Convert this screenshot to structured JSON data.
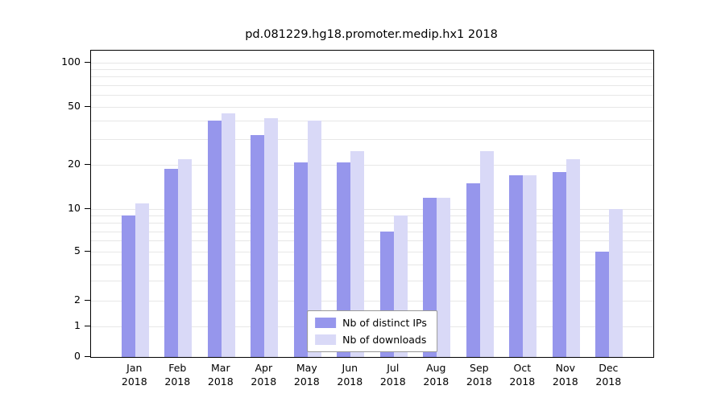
{
  "chart_data": {
    "type": "bar",
    "title": "pd.081229.hg18.promoter.medip.hx1 2018",
    "categories": [
      "Jan",
      "Feb",
      "Mar",
      "Apr",
      "May",
      "Jun",
      "Jul",
      "Aug",
      "Sep",
      "Oct",
      "Nov",
      "Dec"
    ],
    "year": "2018",
    "series": [
      {
        "name": "Nb of distinct IPs",
        "color": "#9696ec",
        "values": [
          9,
          19,
          40,
          32,
          21,
          21,
          7,
          12,
          15,
          17,
          18,
          5
        ]
      },
      {
        "name": "Nb of downloads",
        "color": "#d9d9f7",
        "values": [
          11,
          22,
          45,
          42,
          40,
          25,
          9,
          12,
          25,
          17,
          22,
          10
        ]
      }
    ],
    "yscale": "asinh",
    "yticks": [
      0,
      1,
      2,
      5,
      10,
      20,
      50,
      100
    ],
    "ygrid_minor": [
      1,
      2,
      3,
      4,
      5,
      6,
      7,
      8,
      9,
      10,
      20,
      30,
      40,
      50,
      60,
      70,
      80,
      90,
      100
    ],
    "ylim": [
      0,
      120
    ],
    "xlabel": "",
    "ylabel": "",
    "grid": true,
    "legend_position": "bottom-center",
    "colors": {
      "grid": "#e7e7e7",
      "axis": "#000000",
      "background": "#ffffff"
    }
  }
}
